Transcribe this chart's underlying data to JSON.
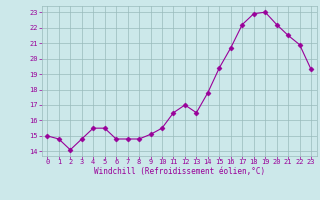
{
  "x": [
    0,
    1,
    2,
    3,
    4,
    5,
    6,
    7,
    8,
    9,
    10,
    11,
    12,
    13,
    14,
    15,
    16,
    17,
    18,
    19,
    20,
    21,
    22,
    23
  ],
  "y": [
    15.0,
    14.8,
    14.1,
    14.8,
    15.5,
    15.5,
    14.8,
    14.8,
    14.8,
    15.1,
    15.5,
    16.5,
    17.0,
    16.5,
    17.8,
    19.4,
    20.7,
    22.2,
    22.9,
    23.0,
    22.2,
    21.5,
    20.9,
    19.3
  ],
  "line_color": "#990099",
  "marker": "D",
  "marker_size": 2.5,
  "background_color": "#cce8ea",
  "grid_color": "#99bbbb",
  "tick_color": "#990099",
  "xlabel": "Windchill (Refroidissement éolien,°C)",
  "xlabel_color": "#990099",
  "ytick_labels": [
    "14",
    "15",
    "16",
    "17",
    "18",
    "19",
    "20",
    "21",
    "22",
    "23"
  ],
  "ytick_vals": [
    14,
    15,
    16,
    17,
    18,
    19,
    20,
    21,
    22,
    23
  ],
  "xtick_vals": [
    0,
    1,
    2,
    3,
    4,
    5,
    6,
    7,
    8,
    9,
    10,
    11,
    12,
    13,
    14,
    15,
    16,
    17,
    18,
    19,
    20,
    21,
    22,
    23
  ],
  "ylim": [
    13.7,
    23.4
  ],
  "xlim": [
    -0.5,
    23.5
  ]
}
